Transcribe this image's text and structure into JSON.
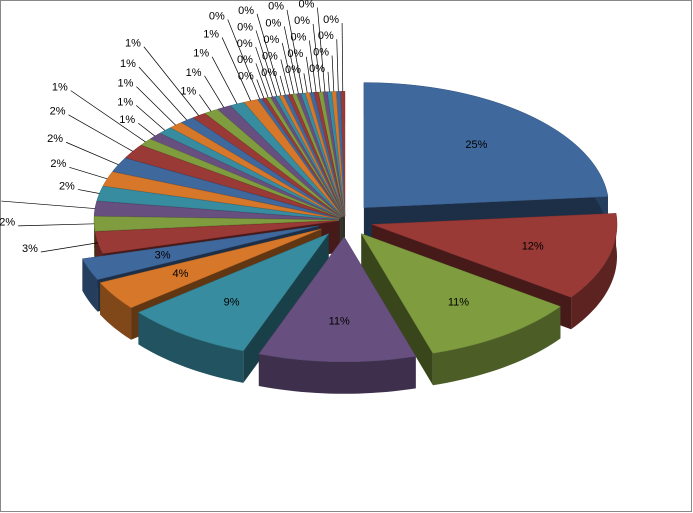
{
  "chart_data": {
    "type": "pie",
    "values": [
      25,
      12,
      11,
      11,
      9,
      4,
      3,
      3,
      2,
      2,
      2,
      2,
      2,
      2,
      1,
      1,
      1,
      1,
      1,
      1,
      1,
      1,
      1,
      1,
      0.3,
      0.3,
      0.3,
      0.3,
      0.3,
      0.3,
      0.3,
      0.3,
      0.3,
      0.3,
      0.3,
      0.3,
      0.3,
      0.3,
      0.3,
      0.3,
      0.3,
      0.3,
      0.3,
      0.3
    ],
    "value_labels": [
      "25%",
      "12%",
      "11%",
      "11%",
      "9%",
      "4%",
      "3%",
      "3%",
      "2%",
      "2%",
      "2%",
      "2%",
      "2%",
      "2%",
      "1%",
      "1%",
      "1%",
      "1%",
      "1%",
      "1%",
      "1%",
      "1%",
      "1%",
      "1%",
      "0%",
      "0%",
      "0%",
      "0%",
      "0%",
      "0%",
      "0%",
      "0%",
      "0%",
      "0%",
      "0%",
      "0%",
      "0%",
      "0%",
      "0%",
      "0%",
      "0%",
      "0%",
      "0%",
      "0%"
    ],
    "colors": [
      "#3f689c",
      "#9a3a37",
      "#7f9c3f",
      "#67507f",
      "#378ca0",
      "#d6772a"
    ]
  }
}
